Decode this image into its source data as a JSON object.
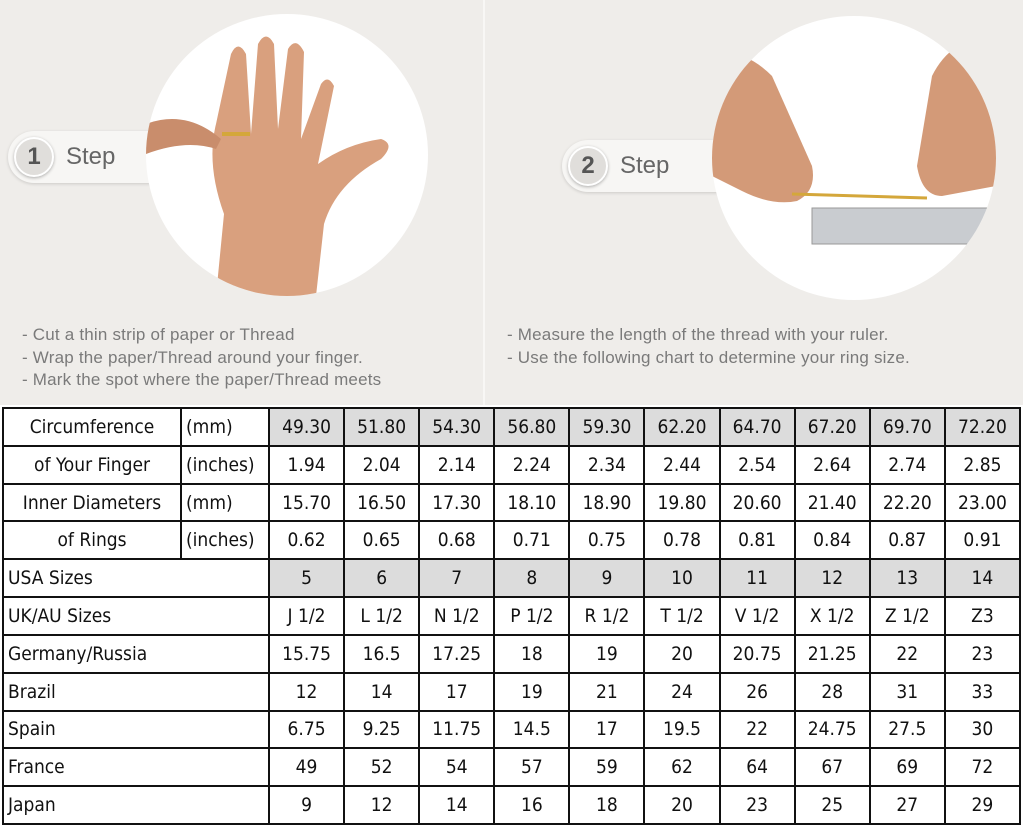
{
  "steps": [
    {
      "number": "1",
      "label": "Step",
      "instructions": [
        "- Cut a thin strip of paper or Thread",
        "- Wrap the paper/Thread around your finger.",
        "- Mark the spot where the paper/Thread meets"
      ]
    },
    {
      "number": "2",
      "label": "Step",
      "instructions": [
        "- Measure the length of the thread with your ruler.",
        "- Use the following chart to determine your ring size."
      ]
    }
  ],
  "colors": {
    "background": "#efedea",
    "shaded_cell": "#dcdcdc",
    "border": "#111111"
  },
  "table": {
    "circumference": {
      "label_lines": [
        "Circumference",
        "of Your Finger"
      ],
      "mm": {
        "unit": "(mm)",
        "values": [
          "49.30",
          "51.80",
          "54.30",
          "56.80",
          "59.30",
          "62.20",
          "64.70",
          "67.20",
          "69.70",
          "72.20"
        ]
      },
      "inches": {
        "unit": "(inches)",
        "values": [
          "1.94",
          "2.04",
          "2.14",
          "2.24",
          "2.34",
          "2.44",
          "2.54",
          "2.64",
          "2.74",
          "2.85"
        ]
      }
    },
    "inner_diameter": {
      "label_lines": [
        "Inner Diameters",
        "of Rings"
      ],
      "mm": {
        "unit": "(mm)",
        "values": [
          "15.70",
          "16.50",
          "17.30",
          "18.10",
          "18.90",
          "19.80",
          "20.60",
          "21.40",
          "22.20",
          "23.00"
        ]
      },
      "inches": {
        "unit": "(inches)",
        "values": [
          "0.62",
          "0.65",
          "0.68",
          "0.71",
          "0.75",
          "0.78",
          "0.81",
          "0.84",
          "0.87",
          "0.91"
        ]
      }
    },
    "rows": [
      {
        "label": "USA Sizes",
        "shaded": true,
        "values": [
          "5",
          "6",
          "7",
          "8",
          "9",
          "10",
          "11",
          "12",
          "13",
          "14"
        ]
      },
      {
        "label": "UK/AU Sizes",
        "values": [
          "J 1/2",
          "L 1/2",
          "N 1/2",
          "P 1/2",
          "R 1/2",
          "T 1/2",
          "V 1/2",
          "X 1/2",
          "Z 1/2",
          "Z3"
        ]
      },
      {
        "label": "Germany/Russia",
        "values": [
          "15.75",
          "16.5",
          "17.25",
          "18",
          "19",
          "20",
          "20.75",
          "21.25",
          "22",
          "23"
        ]
      },
      {
        "label": "Brazil",
        "values": [
          "12",
          "14",
          "17",
          "19",
          "21",
          "24",
          "26",
          "28",
          "31",
          "33"
        ]
      },
      {
        "label": "Spain",
        "values": [
          "6.75",
          "9.25",
          "11.75",
          "14.5",
          "17",
          "19.5",
          "22",
          "24.75",
          "27.5",
          "30"
        ]
      },
      {
        "label": "France",
        "values": [
          "49",
          "52",
          "54",
          "57",
          "59",
          "62",
          "64",
          "67",
          "69",
          "72"
        ]
      },
      {
        "label": "Japan",
        "values": [
          "9",
          "12",
          "14",
          "16",
          "18",
          "20",
          "23",
          "25",
          "27",
          "29"
        ]
      }
    ]
  }
}
